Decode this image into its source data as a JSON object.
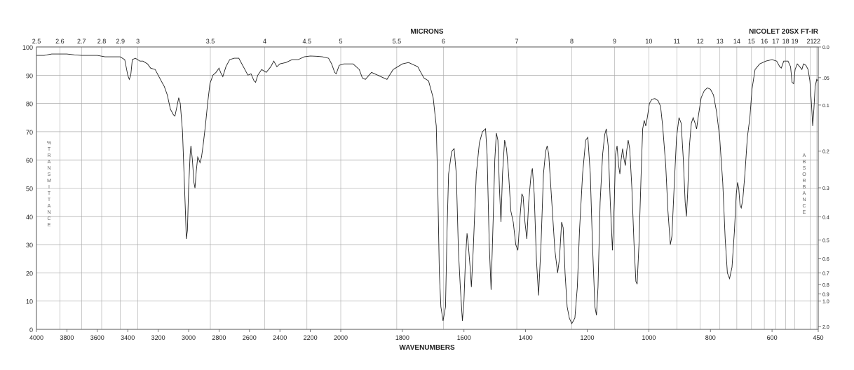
{
  "chart_data": {
    "type": "line",
    "title_top": "MICRONS",
    "instrument": "NICOLET 20SX FT-IR",
    "xlabel": "WAVENUMBERS",
    "ylabel_left": "%TRANSMITTANCE",
    "ylabel_right": "ABSORBANCE",
    "xlim": [
      4000,
      450
    ],
    "ylim": [
      0,
      100
    ],
    "x_ticks": [
      4000,
      3800,
      3600,
      3400,
      3200,
      3000,
      2800,
      2600,
      2400,
      2200,
      2000,
      1800,
      1600,
      1400,
      1200,
      1000,
      800,
      600,
      450
    ],
    "y_ticks": [
      0,
      10,
      20,
      30,
      40,
      50,
      60,
      70,
      80,
      90,
      100
    ],
    "micron_ticks": [
      {
        "label": "2.5",
        "um": 2.5
      },
      {
        "label": "2.6",
        "um": 2.6
      },
      {
        "label": "2.7",
        "um": 2.7
      },
      {
        "label": "2.8",
        "um": 2.8
      },
      {
        "label": "2.9",
        "um": 2.9
      },
      {
        "label": "3",
        "um": 3
      },
      {
        "label": "3.5",
        "um": 3.5
      },
      {
        "label": "4",
        "um": 4
      },
      {
        "label": "4.5",
        "um": 4.5
      },
      {
        "label": "5",
        "um": 5
      },
      {
        "label": "5.5",
        "um": 5.5
      },
      {
        "label": "6",
        "um": 6
      },
      {
        "label": "7",
        "um": 7
      },
      {
        "label": "8",
        "um": 8
      },
      {
        "label": "9",
        "um": 9
      },
      {
        "label": "10",
        "um": 10
      },
      {
        "label": "11",
        "um": 11
      },
      {
        "label": "12",
        "um": 12
      },
      {
        "label": "13",
        "um": 13
      },
      {
        "label": "14",
        "um": 14
      },
      {
        "label": "15",
        "um": 15
      },
      {
        "label": "16",
        "um": 16
      },
      {
        "label": "17",
        "um": 17
      },
      {
        "label": "18",
        "um": 18
      },
      {
        "label": "19",
        "um": 19
      },
      {
        "label": "21",
        "um": 21
      },
      {
        "label": "22",
        "um": 22
      }
    ],
    "absorbance_ticks": [
      {
        "label": "0.0",
        "a": 0.0
      },
      {
        "label": ".05",
        "a": 0.05
      },
      {
        "label": "0.1",
        "a": 0.1
      },
      {
        "label": "0.2",
        "a": 0.2
      },
      {
        "label": "0.3",
        "a": 0.3
      },
      {
        "label": "0.4",
        "a": 0.4
      },
      {
        "label": "0.5",
        "a": 0.5
      },
      {
        "label": "0.6",
        "a": 0.6
      },
      {
        "label": "0.7",
        "a": 0.7
      },
      {
        "label": "0.8",
        "a": 0.8
      },
      {
        "label": "0.9",
        "a": 0.9
      },
      {
        "label": "1.0",
        "a": 1.0
      },
      {
        "label": "2.0",
        "a": 2.0
      }
    ],
    "series": [
      {
        "points": [
          [
            4000,
            97
          ],
          [
            3950,
            97
          ],
          [
            3900,
            97.5
          ],
          [
            3850,
            97.5
          ],
          [
            3800,
            97.5
          ],
          [
            3750,
            97.2
          ],
          [
            3700,
            97
          ],
          [
            3650,
            97
          ],
          [
            3600,
            97
          ],
          [
            3550,
            96.5
          ],
          [
            3500,
            96.5
          ],
          [
            3450,
            96.5
          ],
          [
            3420,
            95.5
          ],
          [
            3400,
            90
          ],
          [
            3390,
            88.5
          ],
          [
            3380,
            90
          ],
          [
            3370,
            95.5
          ],
          [
            3350,
            96
          ],
          [
            3320,
            95
          ],
          [
            3300,
            95
          ],
          [
            3270,
            94
          ],
          [
            3250,
            92.5
          ],
          [
            3220,
            92
          ],
          [
            3200,
            90
          ],
          [
            3180,
            88
          ],
          [
            3160,
            86
          ],
          [
            3140,
            83
          ],
          [
            3120,
            78
          ],
          [
            3100,
            76
          ],
          [
            3090,
            75.5
          ],
          [
            3080,
            78
          ],
          [
            3065,
            82
          ],
          [
            3055,
            80
          ],
          [
            3040,
            70
          ],
          [
            3030,
            55
          ],
          [
            3020,
            40
          ],
          [
            3015,
            32
          ],
          [
            3008,
            35
          ],
          [
            3000,
            50
          ],
          [
            2990,
            62
          ],
          [
            2985,
            65
          ],
          [
            2975,
            60
          ],
          [
            2965,
            52
          ],
          [
            2958,
            50
          ],
          [
            2950,
            56
          ],
          [
            2940,
            61
          ],
          [
            2932,
            60
          ],
          [
            2925,
            59
          ],
          [
            2915,
            61
          ],
          [
            2905,
            65
          ],
          [
            2890,
            72
          ],
          [
            2875,
            80
          ],
          [
            2860,
            87
          ],
          [
            2840,
            90
          ],
          [
            2820,
            91
          ],
          [
            2800,
            92.5
          ],
          [
            2790,
            91
          ],
          [
            2775,
            89.5
          ],
          [
            2755,
            93
          ],
          [
            2730,
            95.5
          ],
          [
            2700,
            96
          ],
          [
            2670,
            96
          ],
          [
            2640,
            93
          ],
          [
            2610,
            90
          ],
          [
            2590,
            90.5
          ],
          [
            2570,
            88
          ],
          [
            2560,
            87.5
          ],
          [
            2545,
            90
          ],
          [
            2520,
            92
          ],
          [
            2490,
            91
          ],
          [
            2460,
            93
          ],
          [
            2440,
            95
          ],
          [
            2420,
            93
          ],
          [
            2400,
            94
          ],
          [
            2360,
            94.5
          ],
          [
            2320,
            95.5
          ],
          [
            2280,
            95.5
          ],
          [
            2240,
            96.5
          ],
          [
            2200,
            96.8
          ],
          [
            2160,
            96.7
          ],
          [
            2120,
            96.5
          ],
          [
            2080,
            96
          ],
          [
            2060,
            94
          ],
          [
            2040,
            91
          ],
          [
            2030,
            90.5
          ],
          [
            2010,
            93.5
          ],
          [
            1990,
            94
          ],
          [
            1960,
            94
          ],
          [
            1940,
            92
          ],
          [
            1930,
            89
          ],
          [
            1920,
            88.5
          ],
          [
            1900,
            91
          ],
          [
            1880,
            90
          ],
          [
            1860,
            89
          ],
          [
            1850,
            88.5
          ],
          [
            1830,
            92
          ],
          [
            1800,
            94
          ],
          [
            1780,
            94.5
          ],
          [
            1750,
            93
          ],
          [
            1740,
            91
          ],
          [
            1730,
            89
          ],
          [
            1715,
            88
          ],
          [
            1700,
            82
          ],
          [
            1690,
            72
          ],
          [
            1685,
            50
          ],
          [
            1680,
            20
          ],
          [
            1675,
            8
          ],
          [
            1668,
            3
          ],
          [
            1660,
            8
          ],
          [
            1655,
            35
          ],
          [
            1650,
            55
          ],
          [
            1640,
            63
          ],
          [
            1632,
            64
          ],
          [
            1625,
            55
          ],
          [
            1618,
            28
          ],
          [
            1612,
            15
          ],
          [
            1605,
            3
          ],
          [
            1600,
            10
          ],
          [
            1595,
            25
          ],
          [
            1590,
            34
          ],
          [
            1586,
            30
          ],
          [
            1580,
            22
          ],
          [
            1576,
            15
          ],
          [
            1570,
            28
          ],
          [
            1560,
            55
          ],
          [
            1550,
            66
          ],
          [
            1540,
            70
          ],
          [
            1530,
            71
          ],
          [
            1525,
            62
          ],
          [
            1518,
            30
          ],
          [
            1512,
            14
          ],
          [
            1505,
            40
          ],
          [
            1500,
            60
          ],
          [
            1495,
            69.5
          ],
          [
            1490,
            67
          ],
          [
            1485,
            50
          ],
          [
            1480,
            38
          ],
          [
            1475,
            55
          ],
          [
            1468,
            67
          ],
          [
            1462,
            64
          ],
          [
            1455,
            55
          ],
          [
            1448,
            42
          ],
          [
            1440,
            38
          ],
          [
            1432,
            30
          ],
          [
            1425,
            28
          ],
          [
            1418,
            40
          ],
          [
            1412,
            48
          ],
          [
            1408,
            47
          ],
          [
            1402,
            38
          ],
          [
            1396,
            32
          ],
          [
            1390,
            45
          ],
          [
            1382,
            55
          ],
          [
            1378,
            57
          ],
          [
            1372,
            48
          ],
          [
            1365,
            25
          ],
          [
            1358,
            12
          ],
          [
            1350,
            30
          ],
          [
            1342,
            55
          ],
          [
            1335,
            63
          ],
          [
            1330,
            65
          ],
          [
            1325,
            62
          ],
          [
            1315,
            45
          ],
          [
            1305,
            28
          ],
          [
            1296,
            20
          ],
          [
            1290,
            25
          ],
          [
            1283,
            38
          ],
          [
            1278,
            36
          ],
          [
            1272,
            20
          ],
          [
            1265,
            8
          ],
          [
            1258,
            4
          ],
          [
            1250,
            2
          ],
          [
            1240,
            4
          ],
          [
            1232,
            15
          ],
          [
            1225,
            35
          ],
          [
            1215,
            55
          ],
          [
            1205,
            67
          ],
          [
            1198,
            68
          ],
          [
            1190,
            55
          ],
          [
            1183,
            30
          ],
          [
            1175,
            8
          ],
          [
            1170,
            5
          ],
          [
            1165,
            15
          ],
          [
            1158,
            45
          ],
          [
            1150,
            62
          ],
          [
            1143,
            69
          ],
          [
            1138,
            71
          ],
          [
            1132,
            65
          ],
          [
            1125,
            45
          ],
          [
            1118,
            28
          ],
          [
            1112,
            45
          ],
          [
            1108,
            62
          ],
          [
            1103,
            65
          ],
          [
            1098,
            58
          ],
          [
            1094,
            55
          ],
          [
            1090,
            60
          ],
          [
            1085,
            64
          ],
          [
            1080,
            60
          ],
          [
            1076,
            58
          ],
          [
            1072,
            63
          ],
          [
            1067,
            67
          ],
          [
            1062,
            64
          ],
          [
            1055,
            50
          ],
          [
            1048,
            30
          ],
          [
            1042,
            17
          ],
          [
            1038,
            16
          ],
          [
            1032,
            30
          ],
          [
            1025,
            55
          ],
          [
            1020,
            71
          ],
          [
            1015,
            74
          ],
          [
            1010,
            72
          ],
          [
            1005,
            75
          ],
          [
            998,
            80
          ],
          [
            990,
            81.5
          ],
          [
            980,
            81.7
          ],
          [
            970,
            81
          ],
          [
            962,
            79
          ],
          [
            955,
            72
          ],
          [
            945,
            58
          ],
          [
            938,
            42
          ],
          [
            930,
            30
          ],
          [
            925,
            33
          ],
          [
            918,
            50
          ],
          [
            910,
            68
          ],
          [
            902,
            75
          ],
          [
            895,
            73
          ],
          [
            888,
            60
          ],
          [
            882,
            45
          ],
          [
            878,
            40
          ],
          [
            874,
            48
          ],
          [
            868,
            65
          ],
          [
            862,
            73
          ],
          [
            856,
            75
          ],
          [
            850,
            73
          ],
          [
            845,
            71
          ],
          [
            840,
            75
          ],
          [
            830,
            82
          ],
          [
            820,
            84.5
          ],
          [
            810,
            85.5
          ],
          [
            800,
            85
          ],
          [
            790,
            83
          ],
          [
            780,
            77
          ],
          [
            770,
            68
          ],
          [
            760,
            52
          ],
          [
            752,
            32
          ],
          [
            745,
            20
          ],
          [
            738,
            18
          ],
          [
            730,
            22
          ],
          [
            722,
            35
          ],
          [
            716,
            48
          ],
          [
            712,
            52
          ],
          [
            708,
            50
          ],
          [
            704,
            44
          ],
          [
            700,
            43
          ],
          [
            695,
            46
          ],
          [
            688,
            55
          ],
          [
            680,
            68
          ],
          [
            672,
            75
          ],
          [
            665,
            85
          ],
          [
            655,
            92
          ],
          [
            640,
            94
          ],
          [
            620,
            95
          ],
          [
            600,
            95.5
          ],
          [
            585,
            95
          ],
          [
            575,
            93
          ],
          [
            570,
            92.5
          ],
          [
            562,
            95
          ],
          [
            548,
            95
          ],
          [
            540,
            93
          ],
          [
            535,
            87.5
          ],
          [
            530,
            87
          ],
          [
            525,
            92
          ],
          [
            518,
            94
          ],
          [
            510,
            93
          ],
          [
            503,
            92
          ],
          [
            498,
            94
          ],
          [
            490,
            93.5
          ],
          [
            483,
            92
          ],
          [
            477,
            88
          ],
          [
            472,
            80
          ],
          [
            468,
            72
          ],
          [
            464,
            78
          ],
          [
            460,
            86
          ],
          [
            455,
            88.5
          ],
          [
            450,
            88
          ]
        ]
      }
    ]
  }
}
